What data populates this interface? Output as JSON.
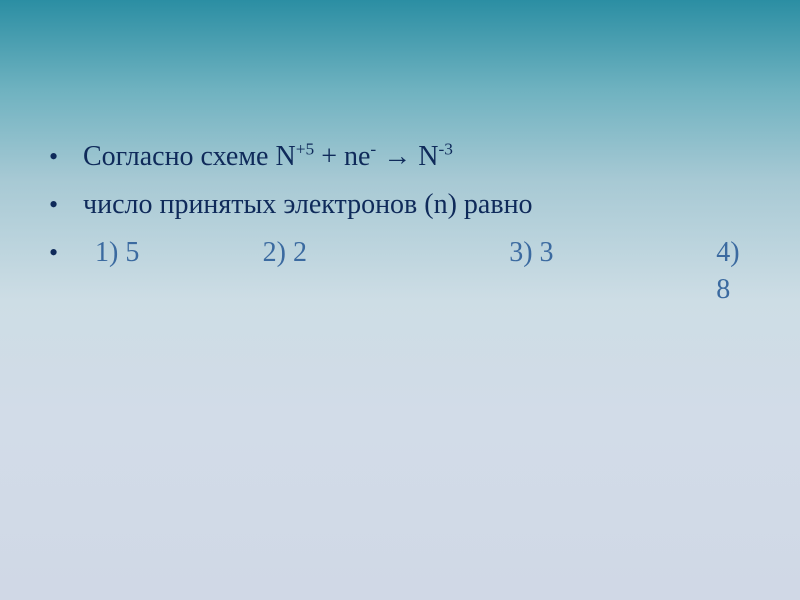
{
  "text_color": "#0f2a5a",
  "accent_color": "#3b6aa0",
  "background_gradient": [
    "#2b8ea3",
    "#6fb2c0",
    "#a7c9d4",
    "#cddde5",
    "#d2dce8",
    "#d0d8e6"
  ],
  "font_family": "Times New Roman",
  "base_fontsize_pt": 21,
  "bullet_glyph": "•",
  "lines": {
    "line1": {
      "prefix": "Согласно схеме N",
      "sup1": "+5",
      "mid": " + ne",
      "sup2": "-",
      "arrow": " → N",
      "sup3": "-3"
    },
    "line2": "число принятых электронов (n) равно",
    "options": {
      "o1": "1) 5",
      "o2": "2) 2",
      "o3": "3) 3",
      "o4": "4) 8"
    }
  }
}
